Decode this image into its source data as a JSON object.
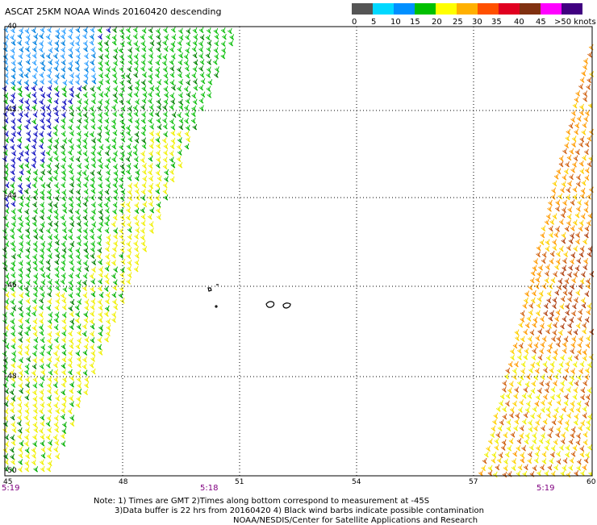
{
  "title": "ASCAT 25KM NOAA Winds 20160420 descending",
  "colorbar": {
    "labels": [
      "0",
      "5",
      "10",
      "15",
      "20",
      "25",
      "30",
      "35",
      "40",
      "45",
      ">50 knots"
    ],
    "colors": [
      "#555555",
      "#00d8ff",
      "#0090ff",
      "#0000d0",
      "#00c000",
      "#ffff00",
      "#ffa000",
      "#ff3030",
      "#e00020",
      "#803010",
      "#ff00ff",
      "#8000ff",
      "#400080"
    ]
  },
  "lat_labels": [
    "-40",
    "-42",
    "-44",
    "-46",
    "-48",
    "-50"
  ],
  "lon_labels": [
    "45",
    "48",
    "51",
    "54",
    "57",
    "60"
  ],
  "times": [
    "5:19",
    "5:18",
    "5:19"
  ],
  "notes": {
    "line1": "Note: 1) Times are GMT 2)Times along bottom correspond to measurement at -45S",
    "line2": "3)Data buffer is 22 hrs from 20160420 4) Black wind barbs indicate possible contamination",
    "line3": "NOAA/NESDIS/Center for Satellite Applications and Research"
  }
}
